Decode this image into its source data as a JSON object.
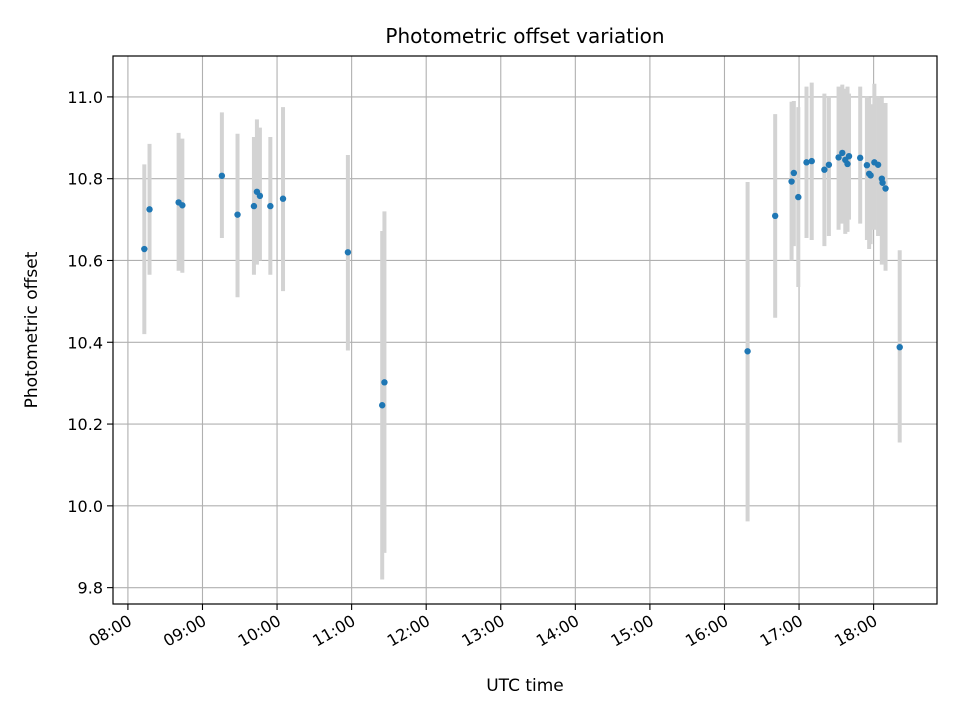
{
  "chart_data": {
    "type": "scatter",
    "title": "Photometric offset variation",
    "xlabel": "UTC time",
    "ylabel": "Photometric offset",
    "grid": true,
    "x_unit": "hours",
    "xlim": [
      7.8,
      18.85
    ],
    "ylim": [
      9.76,
      11.1
    ],
    "x_ticks": [
      {
        "value": 8,
        "label": "08:00"
      },
      {
        "value": 9,
        "label": "09:00"
      },
      {
        "value": 10,
        "label": "10:00"
      },
      {
        "value": 11,
        "label": "11:00"
      },
      {
        "value": 12,
        "label": "12:00"
      },
      {
        "value": 13,
        "label": "13:00"
      },
      {
        "value": 14,
        "label": "14:00"
      },
      {
        "value": 15,
        "label": "15:00"
      },
      {
        "value": 16,
        "label": "16:00"
      },
      {
        "value": 17,
        "label": "17:00"
      },
      {
        "value": 18,
        "label": "18:00"
      }
    ],
    "y_ticks": [
      {
        "value": 9.8,
        "label": "9.8"
      },
      {
        "value": 10.0,
        "label": "10.0"
      },
      {
        "value": 10.2,
        "label": "10.2"
      },
      {
        "value": 10.4,
        "label": "10.4"
      },
      {
        "value": 10.6,
        "label": "10.6"
      },
      {
        "value": 10.8,
        "label": "10.8"
      },
      {
        "value": 11.0,
        "label": "11.0"
      }
    ],
    "colors": {
      "point": "#1f77b4",
      "error_bar": "#d3d3d3",
      "grid": "#b0b0b0"
    },
    "points": [
      {
        "x": 8.22,
        "y": 10.628,
        "lo": 10.42,
        "hi": 10.835
      },
      {
        "x": 8.29,
        "y": 10.725,
        "lo": 10.565,
        "hi": 10.885
      },
      {
        "x": 8.68,
        "y": 10.742,
        "lo": 10.575,
        "hi": 10.912
      },
      {
        "x": 8.73,
        "y": 10.735,
        "lo": 10.57,
        "hi": 10.898
      },
      {
        "x": 9.26,
        "y": 10.807,
        "lo": 10.655,
        "hi": 10.962
      },
      {
        "x": 9.47,
        "y": 10.712,
        "lo": 10.51,
        "hi": 10.91
      },
      {
        "x": 9.69,
        "y": 10.733,
        "lo": 10.565,
        "hi": 10.902
      },
      {
        "x": 9.73,
        "y": 10.768,
        "lo": 10.59,
        "hi": 10.945
      },
      {
        "x": 9.77,
        "y": 10.758,
        "lo": 10.6,
        "hi": 10.925
      },
      {
        "x": 9.91,
        "y": 10.733,
        "lo": 10.565,
        "hi": 10.902
      },
      {
        "x": 10.08,
        "y": 10.751,
        "lo": 10.525,
        "hi": 10.975
      },
      {
        "x": 10.95,
        "y": 10.62,
        "lo": 10.38,
        "hi": 10.858
      },
      {
        "x": 11.41,
        "y": 10.246,
        "lo": 9.82,
        "hi": 10.672
      },
      {
        "x": 11.44,
        "y": 10.302,
        "lo": 9.885,
        "hi": 10.72
      },
      {
        "x": 16.31,
        "y": 10.378,
        "lo": 9.962,
        "hi": 10.792
      },
      {
        "x": 16.68,
        "y": 10.709,
        "lo": 10.46,
        "hi": 10.958
      },
      {
        "x": 16.9,
        "y": 10.793,
        "lo": 10.6,
        "hi": 10.988
      },
      {
        "x": 16.93,
        "y": 10.814,
        "lo": 10.635,
        "hi": 10.99
      },
      {
        "x": 16.99,
        "y": 10.755,
        "lo": 10.535,
        "hi": 10.975
      },
      {
        "x": 17.1,
        "y": 10.84,
        "lo": 10.655,
        "hi": 11.025
      },
      {
        "x": 17.17,
        "y": 10.843,
        "lo": 10.65,
        "hi": 11.035
      },
      {
        "x": 17.34,
        "y": 10.822,
        "lo": 10.635,
        "hi": 11.008
      },
      {
        "x": 17.4,
        "y": 10.834,
        "lo": 10.66,
        "hi": 11.0
      },
      {
        "x": 17.53,
        "y": 10.852,
        "lo": 10.675,
        "hi": 11.025
      },
      {
        "x": 17.58,
        "y": 10.863,
        "lo": 10.69,
        "hi": 11.03
      },
      {
        "x": 17.62,
        "y": 10.846,
        "lo": 10.665,
        "hi": 11.02
      },
      {
        "x": 17.65,
        "y": 10.836,
        "lo": 10.67,
        "hi": 11.025
      },
      {
        "x": 17.67,
        "y": 10.855,
        "lo": 10.7,
        "hi": 11.008
      },
      {
        "x": 17.82,
        "y": 10.851,
        "lo": 10.69,
        "hi": 11.025
      },
      {
        "x": 17.91,
        "y": 10.833,
        "lo": 10.65,
        "hi": 11.0
      },
      {
        "x": 17.94,
        "y": 10.812,
        "lo": 10.628,
        "hi": 10.998
      },
      {
        "x": 17.96,
        "y": 10.808,
        "lo": 10.64,
        "hi": 10.982
      },
      {
        "x": 18.01,
        "y": 10.84,
        "lo": 10.675,
        "hi": 11.032
      },
      {
        "x": 18.06,
        "y": 10.834,
        "lo": 10.66,
        "hi": 11.0
      },
      {
        "x": 18.11,
        "y": 10.8,
        "lo": 10.59,
        "hi": 10.998
      },
      {
        "x": 18.12,
        "y": 10.79,
        "lo": 10.6,
        "hi": 10.985
      },
      {
        "x": 18.16,
        "y": 10.776,
        "lo": 10.575,
        "hi": 10.985
      },
      {
        "x": 18.35,
        "y": 10.388,
        "lo": 10.155,
        "hi": 10.625
      }
    ]
  }
}
